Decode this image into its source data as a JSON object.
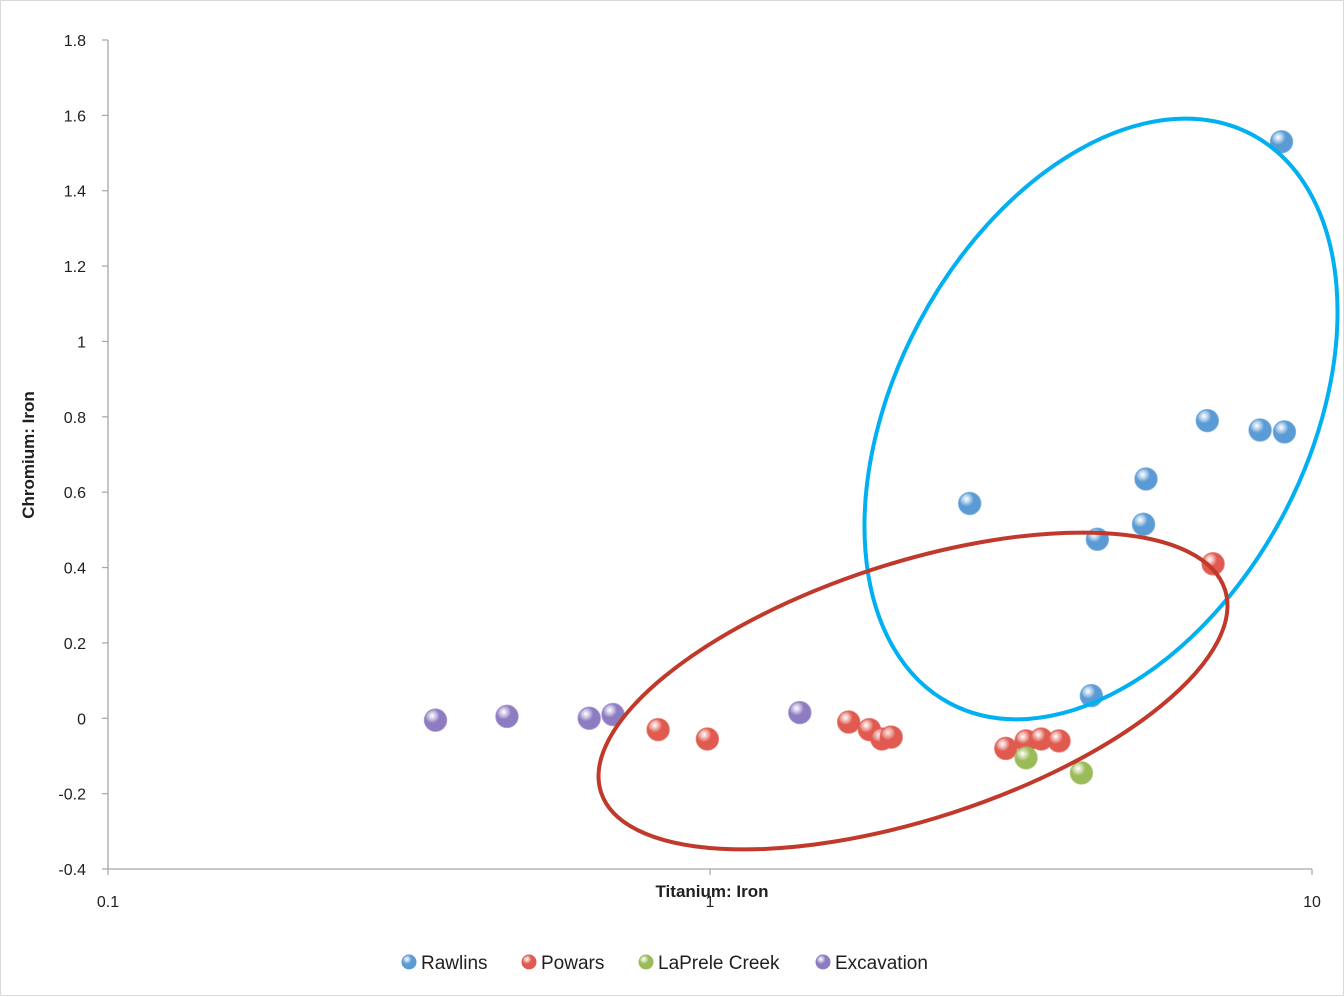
{
  "chart_data": {
    "type": "scatter",
    "xscale": "log",
    "xlim": [
      0.1,
      10
    ],
    "ylim": [
      -0.4,
      1.8
    ],
    "xlabel": "Titanium: Iron",
    "ylabel": "Chromium: Iron",
    "x_ticks": [
      "0.1",
      "1",
      "10"
    ],
    "y_ticks": [
      "-0.4",
      "-0.2",
      "0",
      "0.2",
      "0.4",
      "0.6",
      "0.8",
      "1",
      "1.2",
      "1.4",
      "1.6",
      "1.8"
    ],
    "grid": false,
    "legend_position": "bottom",
    "series": [
      {
        "name": "Rawlins",
        "color": "#5b9bd5",
        "points": [
          {
            "x": 8.9,
            "y": 1.53
          },
          {
            "x": 6.7,
            "y": 0.79
          },
          {
            "x": 8.2,
            "y": 0.765
          },
          {
            "x": 9.0,
            "y": 0.76
          },
          {
            "x": 5.3,
            "y": 0.635
          },
          {
            "x": 2.7,
            "y": 0.57
          },
          {
            "x": 5.25,
            "y": 0.515
          },
          {
            "x": 4.4,
            "y": 0.475
          },
          {
            "x": 4.3,
            "y": 0.06
          }
        ]
      },
      {
        "name": "Powars",
        "color": "#e05a4f",
        "points": [
          {
            "x": 6.85,
            "y": 0.41
          },
          {
            "x": 0.82,
            "y": -0.03
          },
          {
            "x": 0.99,
            "y": -0.055
          },
          {
            "x": 1.7,
            "y": -0.01
          },
          {
            "x": 1.84,
            "y": -0.03
          },
          {
            "x": 1.93,
            "y": -0.055
          },
          {
            "x": 2.0,
            "y": -0.05
          },
          {
            "x": 3.1,
            "y": -0.08
          },
          {
            "x": 3.35,
            "y": -0.06
          },
          {
            "x": 3.55,
            "y": -0.055
          },
          {
            "x": 3.8,
            "y": -0.06
          }
        ]
      },
      {
        "name": "LaPrele Creek",
        "color": "#9bbb59",
        "points": [
          {
            "x": 3.35,
            "y": -0.105
          },
          {
            "x": 4.14,
            "y": -0.145
          }
        ]
      },
      {
        "name": "Excavation",
        "color": "#8e7cc3",
        "points": [
          {
            "x": 0.35,
            "y": -0.005
          },
          {
            "x": 0.46,
            "y": 0.005
          },
          {
            "x": 0.63,
            "y": 0.0
          },
          {
            "x": 0.69,
            "y": 0.01
          },
          {
            "x": 1.41,
            "y": 0.015
          }
        ]
      }
    ],
    "annotations": [
      {
        "shape": "ellipse",
        "color": "#00b0f0",
        "encloses": "Rawlins"
      },
      {
        "shape": "ellipse",
        "color": "#c0392b",
        "encloses": "Powars"
      }
    ]
  }
}
